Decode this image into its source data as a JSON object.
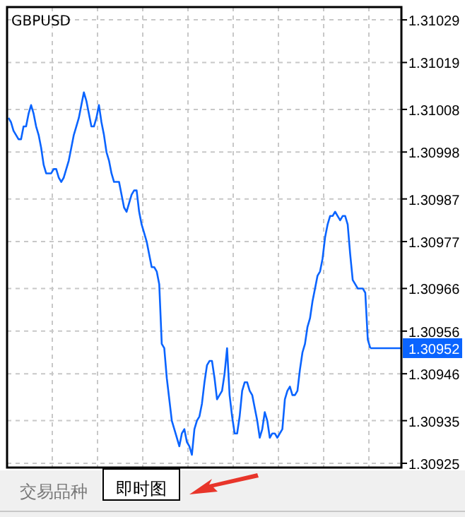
{
  "chart_data": {
    "type": "line",
    "title": "GBPUSD",
    "categories": [
      null,
      null,
      null,
      null,
      null,
      null,
      null,
      null,
      null,
      null,
      null,
      null,
      null,
      null,
      null,
      null,
      null,
      null,
      null,
      null,
      null,
      null,
      null,
      null,
      null,
      null,
      null,
      null,
      null,
      null,
      null,
      null,
      null,
      null,
      null,
      null,
      null,
      null,
      null,
      null,
      null,
      null,
      null,
      null,
      null,
      null,
      null,
      null,
      null,
      null,
      null,
      null,
      null,
      null,
      null,
      null,
      null,
      null,
      null,
      null,
      null,
      null,
      null,
      null,
      null,
      null,
      null,
      null,
      null,
      null,
      null,
      null,
      null,
      null,
      null,
      null,
      null,
      null,
      null,
      null,
      null,
      null,
      null,
      null,
      null,
      null,
      null,
      null,
      null,
      null,
      null,
      null,
      null,
      null,
      null,
      null,
      null,
      null,
      null,
      null,
      null,
      null,
      null,
      null,
      null,
      null,
      null,
      null,
      null,
      null,
      null,
      null,
      null,
      null,
      null,
      null,
      null,
      null,
      null,
      null,
      null,
      null,
      null,
      null,
      null,
      null,
      null,
      null,
      null,
      null,
      null,
      null,
      null,
      null,
      null,
      null,
      null,
      null,
      null,
      null,
      null,
      null,
      null,
      null,
      null
    ],
    "series": [
      {
        "color": "#0a64ff",
        "values": [
          1.31006,
          1.31005,
          1.31003,
          1.31002,
          1.31001,
          1.31001,
          1.31004,
          1.31004,
          1.31007,
          1.31009,
          1.31007,
          1.31004,
          1.31002,
          1.30999,
          1.30995,
          1.30993,
          1.30993,
          1.30993,
          1.30994,
          1.30994,
          1.30992,
          1.30991,
          1.30992,
          1.30994,
          1.30996,
          1.30999,
          1.31002,
          1.31004,
          1.31006,
          1.31009,
          1.31012,
          1.3101,
          1.31007,
          1.31004,
          1.31004,
          1.31006,
          1.31009,
          1.31005,
          1.31002,
          1.30998,
          1.30996,
          1.30993,
          1.30991,
          1.30991,
          1.30991,
          1.30988,
          1.30985,
          1.30984,
          1.30986,
          1.30988,
          1.30989,
          1.30989,
          1.30984,
          1.30981,
          1.30979,
          1.30977,
          1.30974,
          1.30971,
          1.30971,
          1.3097,
          1.30967,
          1.30953,
          1.30952,
          1.30945,
          1.3094,
          1.30935,
          1.30933,
          1.30931,
          1.30929,
          1.30932,
          1.30933,
          1.3093,
          1.30929,
          1.30927,
          1.30933,
          1.30935,
          1.30936,
          1.30939,
          1.30944,
          1.30948,
          1.30949,
          1.30949,
          1.30945,
          1.3094,
          1.30941,
          1.30942,
          1.30946,
          1.30952,
          1.30941,
          1.30936,
          1.30932,
          1.30932,
          1.30936,
          1.30942,
          1.30944,
          1.30944,
          1.30942,
          1.30941,
          1.30938,
          1.30935,
          1.30931,
          1.30933,
          1.30937,
          1.30935,
          1.30931,
          1.30932,
          1.30932,
          1.30931,
          1.30932,
          1.30933,
          1.3094,
          1.30942,
          1.30943,
          1.30941,
          1.30941,
          1.30942,
          1.30947,
          1.30951,
          1.30953,
          1.30957,
          1.30959,
          1.30963,
          1.30966,
          1.30969,
          1.3097,
          1.30973,
          1.30978,
          1.30981,
          1.30983,
          1.30983,
          1.30984,
          1.30983,
          1.30982,
          1.30983,
          1.30983,
          1.30981,
          1.30974,
          1.30968,
          1.30967,
          1.30966,
          1.30966,
          1.30966,
          1.30965,
          1.30954,
          1.30952
        ]
      }
    ],
    "ylim": [
      1.30924,
      1.31032
    ],
    "yticks": [
      1.30925,
      1.30935,
      1.30946,
      1.30956,
      1.30966,
      1.30977,
      1.30987,
      1.30998,
      1.31008,
      1.31019,
      1.31029
    ],
    "tick_labels": "y",
    "grid": true,
    "ref_lines": [
      {
        "axis": "y",
        "value": 1.30952,
        "label": "1.30952",
        "color": "#0a64ff"
      }
    ],
    "annotations": [
      "交易品种",
      "即时图"
    ]
  }
}
